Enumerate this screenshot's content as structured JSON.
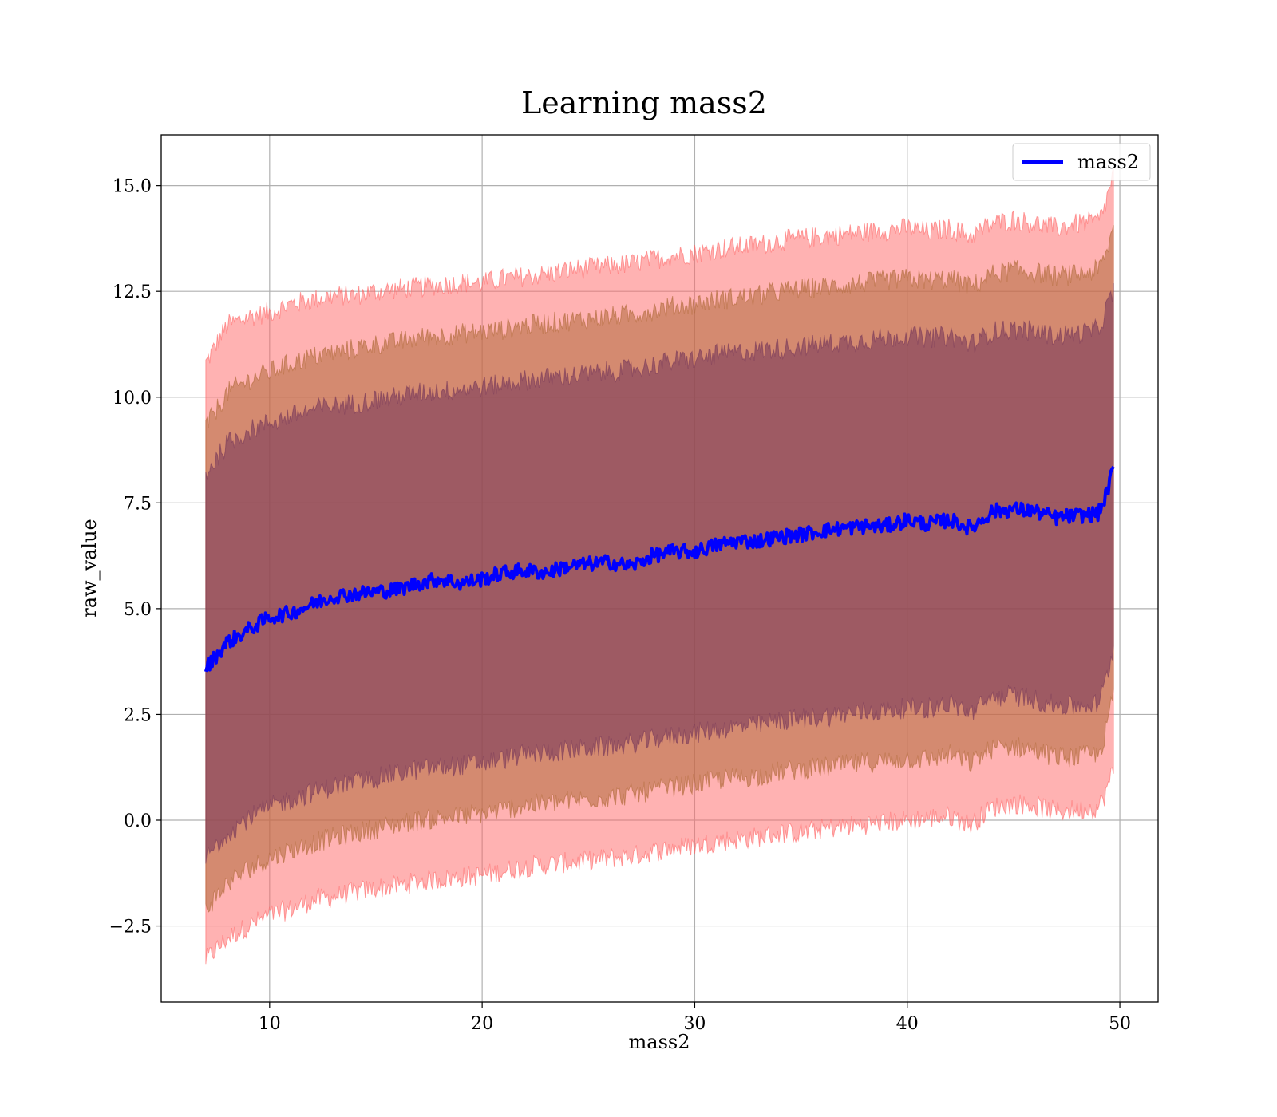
{
  "chart_data": {
    "type": "line",
    "title": "Learning mass2",
    "xlabel": "mass2",
    "ylabel": "raw_value",
    "xlim": [
      4.9,
      51.8
    ],
    "ylim": [
      -4.3,
      16.2
    ],
    "xticks": [
      10,
      20,
      30,
      40,
      50
    ],
    "yticks": [
      -2.5,
      0.0,
      2.5,
      5.0,
      7.5,
      10.0,
      12.5,
      15.0
    ],
    "xtick_labels": [
      "10",
      "20",
      "30",
      "40",
      "50"
    ],
    "ytick_labels": [
      "−2.5",
      "0.0",
      "2.5",
      "5.0",
      "7.5",
      "10.0",
      "12.5",
      "15.0"
    ],
    "grid": true,
    "legend": {
      "position": "top-right",
      "entries": [
        "mass2"
      ]
    },
    "x": [
      7.0,
      8.0,
      9.0,
      10.0,
      11.0,
      12.0,
      13.0,
      14.0,
      15.0,
      16.0,
      17.0,
      18.0,
      19.0,
      20.0,
      21.0,
      22.0,
      23.0,
      24.0,
      25.0,
      26.0,
      27.0,
      28.0,
      29.0,
      30.0,
      31.0,
      32.0,
      33.0,
      34.0,
      35.0,
      36.0,
      37.0,
      38.0,
      39.0,
      40.0,
      41.0,
      42.0,
      43.0,
      44.0,
      45.0,
      46.0,
      47.0,
      48.0,
      49.0,
      49.3,
      49.7
    ],
    "series": [
      {
        "name": "mass2",
        "color": "#0000ff",
        "values": [
          3.6,
          4.2,
          4.5,
          4.8,
          4.9,
          5.1,
          5.3,
          5.35,
          5.4,
          5.45,
          5.6,
          5.7,
          5.6,
          5.7,
          5.85,
          5.9,
          5.85,
          6.0,
          6.05,
          6.1,
          6.0,
          6.25,
          6.35,
          6.35,
          6.5,
          6.6,
          6.6,
          6.7,
          6.75,
          6.85,
          6.9,
          6.95,
          6.95,
          7.1,
          7.0,
          7.1,
          6.9,
          7.3,
          7.35,
          7.3,
          7.15,
          7.2,
          7.25,
          7.6,
          8.3
        ]
      }
    ],
    "bands": [
      {
        "color": "#ff6666",
        "upper": [
          10.8,
          11.7,
          11.9,
          12.0,
          12.2,
          12.3,
          12.4,
          12.4,
          12.5,
          12.55,
          12.6,
          12.65,
          12.7,
          12.7,
          12.8,
          12.85,
          12.9,
          13.0,
          13.05,
          13.1,
          13.15,
          13.25,
          13.35,
          13.4,
          13.5,
          13.55,
          13.6,
          13.7,
          13.75,
          13.8,
          13.85,
          13.9,
          13.95,
          14.0,
          13.9,
          14.0,
          13.8,
          14.1,
          14.2,
          14.1,
          14.0,
          14.1,
          14.15,
          14.5,
          15.3
        ],
        "lower": [
          -3.3,
          -2.8,
          -2.5,
          -2.25,
          -2.1,
          -1.9,
          -1.8,
          -1.7,
          -1.6,
          -1.55,
          -1.45,
          -1.4,
          -1.35,
          -1.3,
          -1.2,
          -1.1,
          -1.05,
          -1.0,
          -0.95,
          -0.9,
          -0.85,
          -0.75,
          -0.65,
          -0.6,
          -0.5,
          -0.45,
          -0.4,
          -0.3,
          -0.3,
          -0.2,
          -0.15,
          -0.1,
          -0.05,
          0.0,
          0.05,
          0.1,
          -0.1,
          0.3,
          0.4,
          0.35,
          0.2,
          0.25,
          0.3,
          0.6,
          1.2
        ]
      },
      {
        "color": "#b06a3a",
        "upper": [
          9.3,
          10.1,
          10.4,
          10.6,
          10.8,
          10.95,
          11.05,
          11.15,
          11.25,
          11.3,
          11.4,
          11.45,
          11.5,
          11.55,
          11.6,
          11.7,
          11.75,
          11.8,
          11.85,
          11.9,
          11.95,
          12.05,
          12.15,
          12.2,
          12.3,
          12.35,
          12.4,
          12.5,
          12.55,
          12.6,
          12.65,
          12.7,
          12.75,
          12.8,
          12.75,
          12.8,
          12.6,
          12.9,
          13.0,
          12.95,
          12.85,
          12.9,
          13.0,
          13.3,
          14.0
        ],
        "lower": [
          -2.1,
          -1.5,
          -1.15,
          -0.9,
          -0.7,
          -0.55,
          -0.4,
          -0.3,
          -0.2,
          -0.1,
          0.0,
          0.05,
          0.1,
          0.15,
          0.25,
          0.35,
          0.4,
          0.45,
          0.5,
          0.55,
          0.6,
          0.7,
          0.8,
          0.85,
          0.95,
          1.0,
          1.05,
          1.15,
          1.2,
          1.25,
          1.3,
          1.35,
          1.4,
          1.45,
          1.45,
          1.55,
          1.35,
          1.7,
          1.75,
          1.65,
          1.5,
          1.5,
          1.55,
          2.0,
          3.0
        ]
      },
      {
        "color": "#7a3a5a",
        "upper": [
          8.2,
          8.9,
          9.2,
          9.4,
          9.55,
          9.7,
          9.8,
          9.85,
          9.95,
          10.0,
          10.1,
          10.15,
          10.2,
          10.25,
          10.3,
          10.4,
          10.45,
          10.5,
          10.55,
          10.6,
          10.65,
          10.75,
          10.85,
          10.9,
          11.0,
          11.05,
          11.1,
          11.15,
          11.2,
          11.25,
          11.3,
          11.35,
          11.4,
          11.45,
          11.4,
          11.45,
          11.25,
          11.55,
          11.6,
          11.55,
          11.45,
          11.5,
          11.6,
          12.0,
          12.5
        ],
        "lower": [
          -0.9,
          -0.3,
          0.05,
          0.3,
          0.5,
          0.65,
          0.8,
          0.9,
          1.0,
          1.1,
          1.2,
          1.25,
          1.3,
          1.35,
          1.45,
          1.55,
          1.6,
          1.65,
          1.7,
          1.75,
          1.8,
          1.9,
          2.0,
          2.05,
          2.15,
          2.2,
          2.25,
          2.35,
          2.4,
          2.45,
          2.5,
          2.55,
          2.6,
          2.65,
          2.65,
          2.75,
          2.55,
          2.9,
          2.95,
          2.85,
          2.7,
          2.7,
          2.75,
          3.2,
          4.1
        ]
      }
    ]
  }
}
